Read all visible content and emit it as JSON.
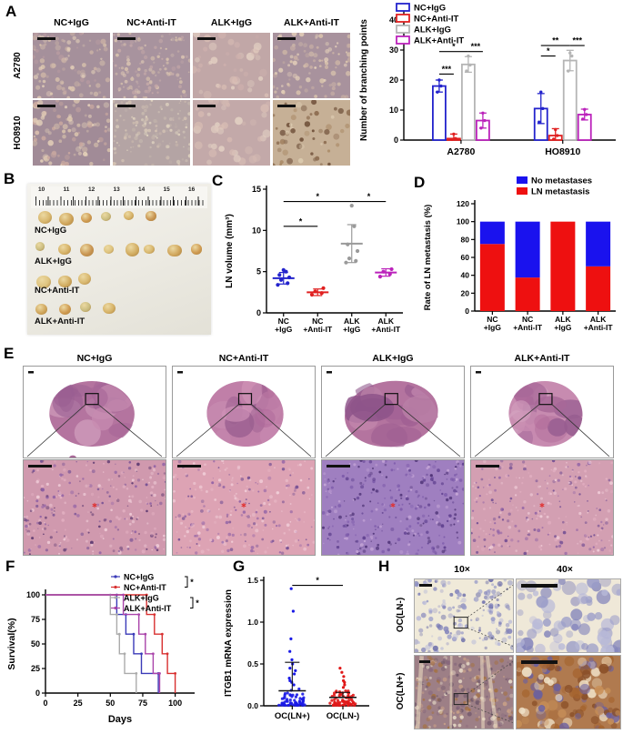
{
  "groups": [
    "NC+IgG",
    "NC+Anti-IT",
    "ALK+IgG",
    "ALK+Anti-IT"
  ],
  "colors": {
    "nc_igg": "#2323cc",
    "nc_anti_it": "#e02020",
    "alk_igg": "#b5b5b5",
    "alk_anti_it": "#bb22bb",
    "stacked_blue": "#1a12ee",
    "stacked_red": "#ee1010",
    "axis": "#000000",
    "sig_line": "#000000",
    "km_blue": "#3a3ab8",
    "km_red": "#d83030",
    "km_gray": "#ababab",
    "km_magenta": "#aa44aa"
  },
  "panel_a": {
    "label": "A",
    "col_headers": [
      "NC+IgG",
      "NC+Anti-IT",
      "ALK+IgG",
      "ALK+Anti-IT"
    ],
    "row_labels": [
      "A2780",
      "HO8910"
    ],
    "images": [
      {
        "name": "micrograph-a2780-nc-igg",
        "base": "#a5909b",
        "dots": [
          "#dcc6ae",
          "#cdb4a6",
          "#e6d2ba",
          "#b89ba1"
        ],
        "count": 110,
        "rmin": 1,
        "rmax": 3.2,
        "seed": 11,
        "scalebar": [
          20,
          3
        ]
      },
      {
        "name": "micrograph-a2780-nc-anti-it",
        "base": "#a8939e",
        "dots": [
          "#dcc6ae",
          "#d8c2b2",
          "#c4a8a8"
        ],
        "count": 130,
        "rmin": 0.8,
        "rmax": 2.4,
        "seed": 22,
        "scalebar": [
          20,
          3
        ]
      },
      {
        "name": "micrograph-a2780-alk-igg",
        "base": "#c1a7a7",
        "dots": [
          "#d8bdb4",
          "#cdb0ad",
          "#e2cfc2"
        ],
        "count": 45,
        "rmin": 1.5,
        "rmax": 4.5,
        "seed": 33,
        "scalebar": [
          20,
          3
        ]
      },
      {
        "name": "micrograph-a2780-alk-anti-it",
        "base": "#a8929d",
        "dots": [
          "#dcc6ae",
          "#cdb4a6",
          "#e6d2ba"
        ],
        "count": 95,
        "rmin": 1,
        "rmax": 3,
        "seed": 44,
        "scalebar": [
          20,
          3
        ]
      },
      {
        "name": "micrograph-ho8910-nc-igg",
        "base": "#a18b97",
        "dots": [
          "#dcc6ae",
          "#e6d2ba",
          "#caa9a0"
        ],
        "count": 100,
        "rmin": 1.2,
        "rmax": 3.6,
        "seed": 55,
        "scalebar": [
          20,
          3
        ]
      },
      {
        "name": "micrograph-ho8910-nc-anti-it",
        "base": "#b4a4a4",
        "dots": [
          "#e0d4c0",
          "#d5c4b4",
          "#c2b4ac"
        ],
        "count": 140,
        "rmin": 0.8,
        "rmax": 2.2,
        "seed": 66,
        "scalebar": [
          20,
          3
        ]
      },
      {
        "name": "micrograph-ho8910-alk-igg",
        "base": "#c3a9a9",
        "dots": [
          "#d8bdb4",
          "#e2cfc2"
        ],
        "count": 40,
        "rmin": 2,
        "rmax": 5,
        "seed": 77,
        "scalebar": [
          20,
          3
        ]
      },
      {
        "name": "micrograph-ho8910-alk-anti-it",
        "base": "#c6b096",
        "dots": [
          "#8a6a4e",
          "#a5845f",
          "#e3d3b8",
          "#6a4a34"
        ],
        "count": 55,
        "rmin": 1.2,
        "rmax": 3.5,
        "seed": 88,
        "scalebar": [
          20,
          3
        ]
      }
    ]
  },
  "panel_b": {
    "label": "B",
    "ruler_numbers": [
      "10",
      "11",
      "12",
      "13",
      "14",
      "15",
      "16"
    ],
    "rows": [
      {
        "label": "NC+IgG",
        "node_count": 6
      },
      {
        "label": "ALK+IgG",
        "node_count": 8
      },
      {
        "label": "NC+Anti-IT",
        "node_count": 3
      },
      {
        "label": "ALK+Anti-IT",
        "node_count": 4
      }
    ],
    "node_colors": [
      "#d8b76e",
      "#d0a65c",
      "#cf9a50",
      "#cabd80",
      "#d6b267",
      "#c99552",
      "#dec37e",
      "#d2ad62"
    ]
  },
  "panel_c": {
    "label": "C"
  },
  "panel_d": {
    "label": "D"
  },
  "panel_e": {
    "label": "E",
    "col_headers": [
      "NC+IgG",
      "NC+Anti-IT",
      "ALK+IgG",
      "ALK+Anti-IT"
    ],
    "top_specs": [
      {
        "name": "he-section-nc-igg",
        "blobs": [
          "#a86898",
          "#b4749f",
          "#975d90",
          "#c78bb0",
          "#d2a0be"
        ],
        "size": 0.3,
        "seed": 101,
        "satellite": true
      },
      {
        "name": "he-section-nc-anti-it",
        "blobs": [
          "#b06a9a",
          "#c07fa8",
          "#9a5f90",
          "#d193b8",
          "#c78bb0"
        ],
        "size": 0.27,
        "seed": 102,
        "satellite": false
      },
      {
        "name": "he-section-alk-igg",
        "blobs": [
          "#a05f93",
          "#b4749f",
          "#8e548a",
          "#c78bb0",
          "#b97fa6"
        ],
        "size": 0.33,
        "seed": 103,
        "satellite": false
      },
      {
        "name": "he-section-alk-anti-it",
        "blobs": [
          "#b06a9a",
          "#c78bb0",
          "#975d90",
          "#d2a0be",
          "#a86898"
        ],
        "size": 0.26,
        "seed": 104,
        "satellite": false
      }
    ],
    "bottom_specs": [
      {
        "name": "he-zoom-nc-igg",
        "base": "#d099ae",
        "dots": [
          "#6f4b92",
          "#8d5fa5",
          "#e3b0c2",
          "#58356e",
          "#f0cdd8"
        ],
        "count": 300,
        "rmin": 0.7,
        "rmax": 2.0,
        "seed": 105,
        "scalebar": [
          26,
          3
        ],
        "redmark": true
      },
      {
        "name": "he-zoom-nc-anti-it",
        "base": "#dda3b4",
        "dots": [
          "#8d5fa5",
          "#e8b8c6",
          "#6f4b92",
          "#f2d0da"
        ],
        "count": 260,
        "rmin": 0.7,
        "rmax": 2.0,
        "seed": 106,
        "scalebar": [
          26,
          3
        ],
        "redmark": true
      },
      {
        "name": "he-zoom-alk-igg",
        "base": "#9f7fc0",
        "dots": [
          "#5e3f8e",
          "#7a58a8",
          "#c7a8d8",
          "#4a2f72"
        ],
        "count": 320,
        "rmin": 0.7,
        "rmax": 2.0,
        "seed": 107,
        "scalebar": [
          26,
          3
        ],
        "redmark": true
      },
      {
        "name": "he-zoom-alk-anti-it",
        "base": "#d39fb2",
        "dots": [
          "#6f4b92",
          "#e3b0c2",
          "#8d5fa5",
          "#f0cdd8"
        ],
        "count": 280,
        "rmin": 0.7,
        "rmax": 2.0,
        "seed": 108,
        "scalebar": [
          26,
          3
        ],
        "redmark": true
      }
    ]
  },
  "panel_f": {
    "label": "F"
  },
  "panel_g": {
    "label": "G"
  },
  "panel_h": {
    "label": "H",
    "col_headers": [
      "10×",
      "40×"
    ],
    "row_labels": [
      "OC(LN-)",
      "OC(LN+)"
    ],
    "specs": [
      {
        "name": "ihc-oc-ln-neg-10x",
        "base": "#f0ead9",
        "dots": [
          "#9a9cc8",
          "#8486bc",
          "#b8b9d8",
          "#6a6ca8"
        ],
        "count": 170,
        "rmin": 1,
        "rmax": 3.2,
        "seed": 201,
        "inset": "dash",
        "scalebar": [
          14,
          3
        ]
      },
      {
        "name": "ihc-oc-ln-neg-40x",
        "base": "#efe8d8",
        "dots": [
          "#9a9cc8",
          "#7f81ba",
          "#b8b9d8"
        ],
        "count": 70,
        "rmin": 3,
        "rmax": 8,
        "seed": 202,
        "scalebar": [
          40,
          4
        ]
      },
      {
        "name": "ihc-oc-ln-pos-10x",
        "base": "#9d7f86",
        "dots": [
          "#87687c",
          "#a5713f",
          "#e8dcc8",
          "#70586a",
          "#c8a088"
        ],
        "count": 260,
        "rmin": 1,
        "rmax": 2.6,
        "seed": 203,
        "inset": "dash",
        "scalebar": [
          12,
          3
        ],
        "streaks": true
      },
      {
        "name": "ihc-oc-ln-pos-40x",
        "base": "#b07a4f",
        "dots": [
          "#a5642f",
          "#6a5fa0",
          "#f0e2c8",
          "#8a4f28",
          "#c89058"
        ],
        "count": 120,
        "rmin": 2.5,
        "rmax": 6,
        "seed": 204,
        "scalebar": [
          40,
          4
        ]
      }
    ]
  },
  "chart_data": [
    {
      "id": "branching_points",
      "type": "bar",
      "title": "",
      "ylabel": "Number of branching points",
      "xlabel": "",
      "categories": [
        "A2780",
        "HO8910"
      ],
      "ylim": [
        0,
        40
      ],
      "yticks": [
        0,
        10,
        20,
        30,
        40
      ],
      "legend_position": "top-left",
      "series": [
        {
          "name": "NC+IgG",
          "color": "#2323cc",
          "values": [
            18,
            10.5
          ],
          "errors": [
            2,
            5
          ],
          "points": [
            [
              16,
              18,
              20
            ],
            [
              6,
              10.5,
              16
            ]
          ]
        },
        {
          "name": "NC+Anti-IT",
          "color": "#e02020",
          "values": [
            0.5,
            1.5
          ],
          "errors": [
            1.5,
            2.3
          ],
          "points": [
            [
              0.2,
              0.5,
              2
            ],
            [
              0.3,
              1.5,
              3.5
            ]
          ]
        },
        {
          "name": "ALK+IgG",
          "color": "#b5b5b5",
          "values": [
            25.2,
            26.5
          ],
          "errors": [
            2.6,
            3.4
          ],
          "points": [
            [
              23,
              25,
              28
            ],
            [
              23,
              28,
              29
            ]
          ]
        },
        {
          "name": "ALK+Anti-IT",
          "color": "#bb22bb",
          "values": [
            6.5,
            8.5
          ],
          "errors": [
            2.5,
            1.8
          ],
          "points": [
            [
              4,
              6.5,
              9
            ],
            [
              7,
              8.5,
              10.2
            ]
          ]
        }
      ],
      "significance": [
        {
          "cat": 0,
          "from": 0,
          "to": 1,
          "label": "***",
          "y": 22
        },
        {
          "cat": 0,
          "from": 0,
          "to": 2,
          "label": "*",
          "y": 29.5
        },
        {
          "cat": 0,
          "from": 2,
          "to": 3,
          "label": "***",
          "y": 29.5
        },
        {
          "cat": 1,
          "from": 0,
          "to": 1,
          "label": "*",
          "y": 28
        },
        {
          "cat": 1,
          "from": 0,
          "to": 2,
          "label": "**",
          "y": 31.5
        },
        {
          "cat": 1,
          "from": 2,
          "to": 3,
          "label": "***",
          "y": 31.5
        }
      ]
    },
    {
      "id": "ln_volume",
      "type": "scatter",
      "ylabel": "LN volume (mm³)",
      "categories": [
        "NC\n+IgG",
        "NC\n+Anti-IT",
        "ALK\n+IgG",
        "ALK\n+Anti-IT"
      ],
      "ylim": [
        0,
        15
      ],
      "yticks": [
        0,
        5,
        10,
        15
      ],
      "groups": [
        {
          "name": "NC+IgG",
          "color": "#2323cc",
          "points": [
            3.4,
            3.6,
            4.0,
            4.3,
            4.6,
            5.0,
            5.2
          ],
          "mean": 4.2,
          "sd": 0.7
        },
        {
          "name": "NC+Anti-IT",
          "color": "#e02020",
          "points": [
            2.2,
            2.4,
            2.6,
            3.0
          ],
          "mean": 2.5,
          "sd": 0.4
        },
        {
          "name": "ALK+IgG",
          "color": "#9a9a9a",
          "points": [
            6.1,
            6.3,
            6.6,
            7.5,
            8.3,
            10.5,
            13.0
          ],
          "mean": 8.4,
          "sd": 2.3
        },
        {
          "name": "ALK+Anti-IT",
          "color": "#bb22bb",
          "points": [
            4.4,
            4.7,
            5.0,
            5.3
          ],
          "mean": 4.9,
          "sd": 0.45
        }
      ],
      "significance": [
        {
          "from": 0,
          "to": 1,
          "label": "*",
          "y": 10.5
        },
        {
          "from": 0,
          "to": 2,
          "label": "*",
          "y": 13.5
        },
        {
          "from": 2,
          "to": 3,
          "label": "*",
          "y": 13.5
        }
      ]
    },
    {
      "id": "ln_metastasis_rate",
      "type": "stacked-bar",
      "ylabel": "Rate of LN metastasis (%)",
      "categories": [
        "NC\n+IgG",
        "NC\n+Anti-IT",
        "ALK\n+IgG",
        "ALK\n+Anti-IT"
      ],
      "ylim": [
        0,
        120
      ],
      "yticks": [
        0,
        20,
        40,
        60,
        80,
        100,
        120
      ],
      "legend_position": "top-right",
      "legend_order": [
        "No metastases",
        "LN metastasis"
      ],
      "series": [
        {
          "name": "LN metastasis",
          "color": "#ee1010",
          "values": [
            75,
            37.5,
            100,
            50
          ]
        },
        {
          "name": "No metastases",
          "color": "#1a12ee",
          "values": [
            25,
            62.5,
            0,
            50
          ]
        }
      ]
    },
    {
      "id": "survival",
      "type": "line",
      "ylabel": "Survival(%)",
      "xlabel": "Days",
      "xlim": [
        0,
        115
      ],
      "xticks": [
        0,
        25,
        50,
        75,
        100
      ],
      "yticks": [
        0,
        25,
        50,
        75,
        100
      ],
      "series": [
        {
          "name": "NC+IgG",
          "color": "#3a3ab8",
          "steps": [
            [
              0,
              100
            ],
            [
              55,
              100
            ],
            [
              55,
              80
            ],
            [
              62,
              80
            ],
            [
              62,
              60
            ],
            [
              68,
              60
            ],
            [
              68,
              40
            ],
            [
              74,
              40
            ],
            [
              74,
              20
            ],
            [
              87,
              20
            ],
            [
              87,
              0
            ]
          ]
        },
        {
          "name": "NC+Anti-IT",
          "color": "#d83030",
          "steps": [
            [
              0,
              100
            ],
            [
              78,
              100
            ],
            [
              78,
              80
            ],
            [
              84,
              80
            ],
            [
              84,
              60
            ],
            [
              90,
              60
            ],
            [
              90,
              40
            ],
            [
              94,
              40
            ],
            [
              94,
              20
            ],
            [
              100,
              20
            ],
            [
              100,
              0
            ]
          ]
        },
        {
          "name": "ALK+IgG",
          "color": "#ababab",
          "steps": [
            [
              0,
              100
            ],
            [
              50,
              100
            ],
            [
              50,
              80
            ],
            [
              55,
              80
            ],
            [
              55,
              60
            ],
            [
              57,
              60
            ],
            [
              57,
              40
            ],
            [
              61,
              40
            ],
            [
              61,
              20
            ],
            [
              70,
              20
            ],
            [
              70,
              0
            ]
          ]
        },
        {
          "name": "ALK+Anti-IT",
          "color": "#aa44aa",
          "steps": [
            [
              0,
              100
            ],
            [
              60,
              100
            ],
            [
              60,
              80
            ],
            [
              72,
              80
            ],
            [
              72,
              60
            ],
            [
              77,
              60
            ],
            [
              77,
              40
            ],
            [
              83,
              40
            ],
            [
              83,
              20
            ],
            [
              88,
              20
            ],
            [
              88,
              0
            ]
          ]
        }
      ],
      "legend_sig": [
        {
          "rows": [
            0,
            1
          ],
          "label": "*"
        },
        {
          "rows": [
            2,
            3
          ],
          "label": "*"
        }
      ]
    },
    {
      "id": "itgb1",
      "type": "scatter",
      "ylabel": "ITGB1 mRNA expression",
      "categories": [
        "OC(LN+)",
        "OC(LN-)"
      ],
      "ylim": [
        0,
        1.5
      ],
      "yticks": [
        0.0,
        0.5,
        1.0,
        1.5
      ],
      "groups": [
        {
          "name": "OC(LN+)",
          "color": "#1a1ae6",
          "n": 75,
          "cluster": [
            0.005,
            0.22
          ],
          "outliers": [
            0.25,
            0.28,
            0.3,
            0.33,
            0.38,
            0.42,
            0.45,
            0.5,
            0.55,
            0.65,
            0.8,
            1.13,
            1.4
          ],
          "mean": 0.18,
          "upper": 0.52,
          "seed": 301
        },
        {
          "name": "OC(LN-)",
          "color": "#e01818",
          "n": 75,
          "cluster": [
            0.005,
            0.18
          ],
          "outliers": [
            0.22,
            0.25,
            0.28,
            0.3,
            0.35,
            0.4,
            0.45
          ],
          "mean": 0.1,
          "upper": 0.16,
          "seed": 302
        }
      ],
      "significance": [
        {
          "from": 0,
          "to": 1,
          "label": "*",
          "y": 1.44
        }
      ]
    }
  ]
}
